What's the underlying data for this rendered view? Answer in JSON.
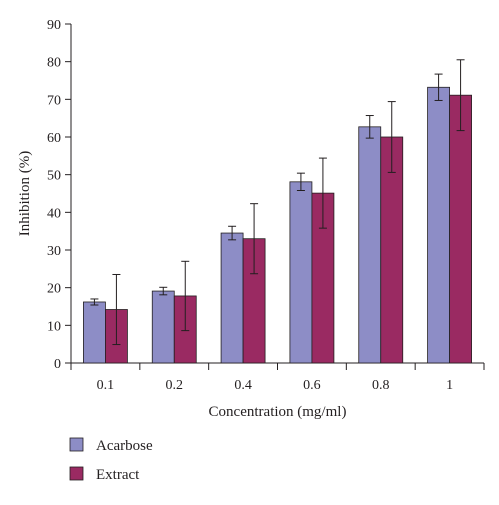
{
  "chart_data": {
    "type": "bar",
    "title": "",
    "xlabel": "Concentration (mg/ml)",
    "ylabel": "Inhibition (%)",
    "ylim": [
      0,
      90
    ],
    "yticks": [
      0,
      10,
      20,
      30,
      40,
      50,
      60,
      70,
      80,
      90
    ],
    "grid": false,
    "legend_position": "bottom-left",
    "categories": [
      "0.1",
      "0.2",
      "0.4",
      "0.6",
      "0.8",
      "1"
    ],
    "series": [
      {
        "name": "Acarbose",
        "color": "#8d8dc6",
        "values": [
          16.2,
          19.1,
          34.5,
          48.1,
          62.7,
          73.2
        ],
        "error": [
          0.8,
          1.0,
          1.8,
          2.3,
          3.0,
          3.5
        ]
      },
      {
        "name": "Extract",
        "color": "#9a2a62",
        "values": [
          14.2,
          17.8,
          33.0,
          45.1,
          60.0,
          71.1
        ],
        "error": [
          9.3,
          9.2,
          9.3,
          9.3,
          9.4,
          9.4
        ]
      }
    ]
  }
}
